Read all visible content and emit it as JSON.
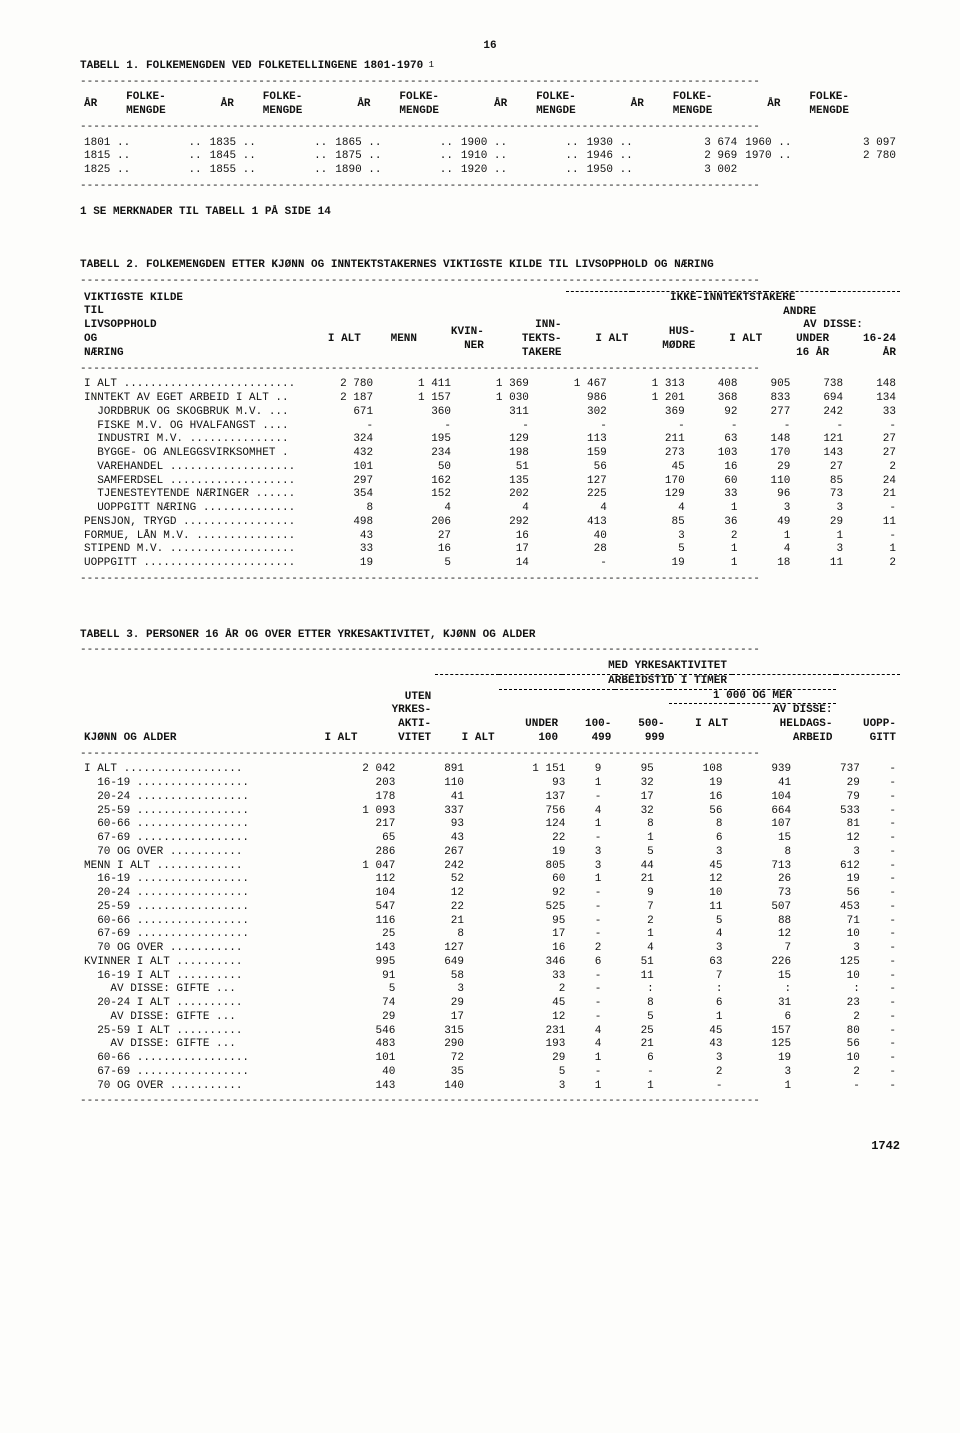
{
  "pageTop": "16",
  "table1": {
    "title": "TABELL 1. FOLKEMENGDEN VED FOLKETELLINGENE 1801-1970",
    "colHead": {
      "ar": "ÅR",
      "folke": "FOLKE-\nMENGDE"
    },
    "rows": [
      [
        "1801 ..",
        "..",
        "1835 ..",
        "..",
        "1865 ..",
        "..",
        "1900 ..",
        "..",
        "1930 ..",
        "3 674",
        "1960 ..",
        "3 097"
      ],
      [
        "1815 ..",
        "..",
        "1845 ..",
        "..",
        "1875 ..",
        "..",
        "1910 ..",
        "..",
        "1946 ..",
        "2 969",
        "1970 ..",
        "2 780"
      ],
      [
        "1825 ..",
        "..",
        "1855 ..",
        "..",
        "1890 ..",
        "..",
        "1920 ..",
        "..",
        "1950 ..",
        "3 002",
        "",
        ""
      ]
    ],
    "note": "1 SE MERKNADER TIL TABELL 1 PÅ SIDE 14"
  },
  "table2": {
    "title": "TABELL 2. FOLKEMENGDEN ETTER KJØNN OG INNTEKTSTAKERNES VIKTIGSTE KILDE TIL LIVSOPPHOLD OG NÆRING",
    "header": {
      "left": "VIKTIGSTE KILDE\nTIL\nLIVSOPPHOLD\nOG\nNÆRING",
      "ialt": "I ALT",
      "menn": "MENN",
      "kvinner": "KVIN-\nNER",
      "inntekt": "INN-\nTEKTS-\nTAKERE",
      "ikke": "IKKE-INNTEKTSTAKERE",
      "ialt2": "I ALT",
      "hus": "HUS-\nMØDRE",
      "andre": "ANDRE",
      "avdisse": "AV DISSE:",
      "ialt3": "I ALT",
      "u16": "UNDER\n16 ÅR",
      "a1624": "16-24\nÅR"
    },
    "rows": [
      {
        "label": "I ALT ..........................",
        "v": [
          "2 780",
          "1 411",
          "1 369",
          "1 467",
          "1 313",
          "408",
          "905",
          "738",
          "148"
        ]
      },
      {
        "label": "",
        "v": [
          "",
          "",
          "",
          "",
          "",
          "",
          "",
          "",
          ""
        ]
      },
      {
        "label": "INNTEKT AV EGET ARBEID I ALT ..",
        "v": [
          "2 187",
          "1 157",
          "1 030",
          "986",
          "1 201",
          "368",
          "833",
          "694",
          "134"
        ]
      },
      {
        "label": "  JORDBRUK OG SKOGBRUK M.V. ...",
        "v": [
          "671",
          "360",
          "311",
          "302",
          "369",
          "92",
          "277",
          "242",
          "33"
        ]
      },
      {
        "label": "  FISKE M.V. OG HVALFANGST ....",
        "v": [
          "-",
          "-",
          "-",
          "-",
          "-",
          "-",
          "-",
          "-",
          "-"
        ]
      },
      {
        "label": "  INDUSTRI M.V. ...............",
        "v": [
          "324",
          "195",
          "129",
          "113",
          "211",
          "63",
          "148",
          "121",
          "27"
        ]
      },
      {
        "label": "  BYGGE- OG ANLEGGSVIRKSOMHET .",
        "v": [
          "432",
          "234",
          "198",
          "159",
          "273",
          "103",
          "170",
          "143",
          "27"
        ]
      },
      {
        "label": "  VAREHANDEL ...................",
        "v": [
          "101",
          "50",
          "51",
          "56",
          "45",
          "16",
          "29",
          "27",
          "2"
        ]
      },
      {
        "label": "  SAMFERDSEL ...................",
        "v": [
          "297",
          "162",
          "135",
          "127",
          "170",
          "60",
          "110",
          "85",
          "24"
        ]
      },
      {
        "label": "  TJENESTEYTENDE NÆRINGER ......",
        "v": [
          "354",
          "152",
          "202",
          "225",
          "129",
          "33",
          "96",
          "73",
          "21"
        ]
      },
      {
        "label": "  UOPPGITT NÆRING ..............",
        "v": [
          "8",
          "4",
          "4",
          "4",
          "4",
          "1",
          "3",
          "3",
          "-"
        ]
      },
      {
        "label": "PENSJON, TRYGD .................",
        "v": [
          "498",
          "206",
          "292",
          "413",
          "85",
          "36",
          "49",
          "29",
          "11"
        ]
      },
      {
        "label": "FORMUE, LÅN M.V. ...............",
        "v": [
          "43",
          "27",
          "16",
          "40",
          "3",
          "2",
          "1",
          "1",
          "-"
        ]
      },
      {
        "label": "STIPEND M.V. ...................",
        "v": [
          "33",
          "16",
          "17",
          "28",
          "5",
          "1",
          "4",
          "3",
          "1"
        ]
      },
      {
        "label": "UOPPGITT .......................",
        "v": [
          "19",
          "5",
          "14",
          "-",
          "19",
          "1",
          "18",
          "11",
          "2"
        ]
      }
    ]
  },
  "table3": {
    "title": "TABELL 3. PERSONER 16 ÅR OG OVER ETTER YRKESAKTIVITET, KJØNN OG ALDER",
    "header": {
      "left": "KJØNN OG ALDER",
      "ialt": "I ALT",
      "uten": "UTEN\nYRKES-\nAKTI-\nVITET",
      "med": "MED YRKESAKTIVITET",
      "arb": "ARBEIDSTID I TIMER",
      "ialt2": "I ALT",
      "u100": "UNDER\n100",
      "c100": "100-\n499",
      "c500": "500-\n999",
      "c1000": "1 000 OG MER",
      "ialt3": "I ALT",
      "avdisse": "AV DISSE:\nHELDAGS-\nARBEID",
      "uopp": "UOPP-\nGITT"
    },
    "rows": [
      {
        "label": "I ALT ..................",
        "v": [
          "2 042",
          "891",
          "1 151",
          "9",
          "95",
          "108",
          "939",
          "737",
          "-"
        ]
      },
      {
        "label": "  16-19 .................",
        "v": [
          "203",
          "110",
          "93",
          "1",
          "32",
          "19",
          "41",
          "29",
          "-"
        ]
      },
      {
        "label": "  20-24 .................",
        "v": [
          "178",
          "41",
          "137",
          "-",
          "17",
          "16",
          "104",
          "79",
          "-"
        ]
      },
      {
        "label": "  25-59 .................",
        "v": [
          "1 093",
          "337",
          "756",
          "4",
          "32",
          "56",
          "664",
          "533",
          "-"
        ]
      },
      {
        "label": "  60-66 .................",
        "v": [
          "217",
          "93",
          "124",
          "1",
          "8",
          "8",
          "107",
          "81",
          "-"
        ]
      },
      {
        "label": "  67-69 .................",
        "v": [
          "65",
          "43",
          "22",
          "-",
          "1",
          "6",
          "15",
          "12",
          "-"
        ]
      },
      {
        "label": "  70 OG OVER ...........",
        "v": [
          "286",
          "267",
          "19",
          "3",
          "5",
          "3",
          "8",
          "3",
          "-"
        ]
      },
      {
        "label": "",
        "v": [
          "",
          "",
          "",
          "",
          "",
          "",
          "",
          "",
          ""
        ]
      },
      {
        "label": "MENN I ALT .............",
        "v": [
          "1 047",
          "242",
          "805",
          "3",
          "44",
          "45",
          "713",
          "612",
          "-"
        ]
      },
      {
        "label": "  16-19 .................",
        "v": [
          "112",
          "52",
          "60",
          "1",
          "21",
          "12",
          "26",
          "19",
          "-"
        ]
      },
      {
        "label": "  20-24 .................",
        "v": [
          "104",
          "12",
          "92",
          "-",
          "9",
          "10",
          "73",
          "56",
          "-"
        ]
      },
      {
        "label": "  25-59 .................",
        "v": [
          "547",
          "22",
          "525",
          "-",
          "7",
          "11",
          "507",
          "453",
          "-"
        ]
      },
      {
        "label": "  60-66 .................",
        "v": [
          "116",
          "21",
          "95",
          "-",
          "2",
          "5",
          "88",
          "71",
          "-"
        ]
      },
      {
        "label": "  67-69 .................",
        "v": [
          "25",
          "8",
          "17",
          "-",
          "1",
          "4",
          "12",
          "10",
          "-"
        ]
      },
      {
        "label": "  70 OG OVER ...........",
        "v": [
          "143",
          "127",
          "16",
          "2",
          "4",
          "3",
          "7",
          "3",
          "-"
        ]
      },
      {
        "label": "",
        "v": [
          "",
          "",
          "",
          "",
          "",
          "",
          "",
          "",
          ""
        ]
      },
      {
        "label": "KVINNER I ALT ..........",
        "v": [
          "995",
          "649",
          "346",
          "6",
          "51",
          "63",
          "226",
          "125",
          "-"
        ]
      },
      {
        "label": "  16-19 I ALT ..........",
        "v": [
          "91",
          "58",
          "33",
          "-",
          "11",
          "7",
          "15",
          "10",
          "-"
        ]
      },
      {
        "label": "    AV DISSE: GIFTE ...",
        "v": [
          "5",
          "3",
          "2",
          "-",
          ":",
          ":",
          ":",
          ":",
          "-"
        ]
      },
      {
        "label": "  20-24 I ALT ..........",
        "v": [
          "74",
          "29",
          "45",
          "-",
          "8",
          "6",
          "31",
          "23",
          "-"
        ]
      },
      {
        "label": "    AV DISSE: GIFTE ...",
        "v": [
          "29",
          "17",
          "12",
          "-",
          "5",
          "1",
          "6",
          "2",
          "-"
        ]
      },
      {
        "label": "  25-59 I ALT ..........",
        "v": [
          "546",
          "315",
          "231",
          "4",
          "25",
          "45",
          "157",
          "80",
          "-"
        ]
      },
      {
        "label": "    AV DISSE: GIFTE ...",
        "v": [
          "483",
          "290",
          "193",
          "4",
          "21",
          "43",
          "125",
          "56",
          "-"
        ]
      },
      {
        "label": "  60-66 .................",
        "v": [
          "101",
          "72",
          "29",
          "1",
          "6",
          "3",
          "19",
          "10",
          "-"
        ]
      },
      {
        "label": "  67-69 .................",
        "v": [
          "40",
          "35",
          "5",
          "-",
          "-",
          "2",
          "3",
          "2",
          "-"
        ]
      },
      {
        "label": "  70 OG OVER ...........",
        "v": [
          "143",
          "140",
          "3",
          "1",
          "1",
          "-",
          "1",
          "-",
          "-"
        ]
      }
    ]
  },
  "footer": "1742"
}
